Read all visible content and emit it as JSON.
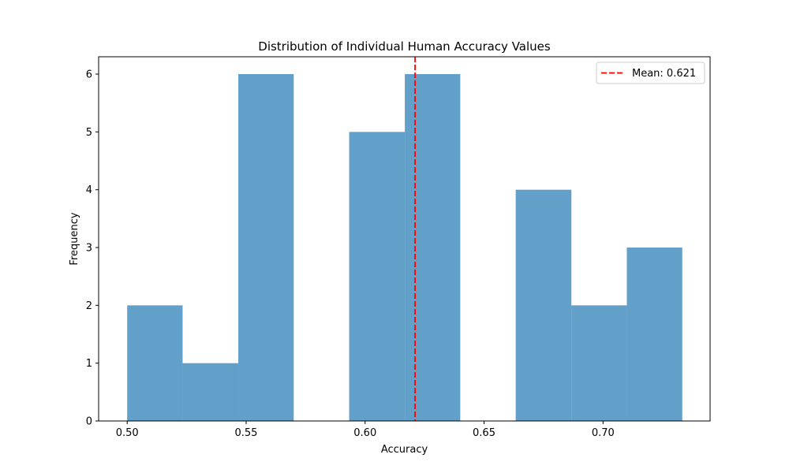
{
  "chart_data": {
    "type": "bar",
    "title": "Distribution of Individual Human Accuracy Values",
    "xlabel": "Accuracy",
    "ylabel": "Frequency",
    "bins": [
      {
        "x0": 0.5,
        "x1": 0.5233,
        "count": 2
      },
      {
        "x0": 0.5233,
        "x1": 0.5467,
        "count": 1
      },
      {
        "x0": 0.5467,
        "x1": 0.57,
        "count": 6
      },
      {
        "x0": 0.57,
        "x1": 0.5933,
        "count": 0
      },
      {
        "x0": 0.5933,
        "x1": 0.6167,
        "count": 5
      },
      {
        "x0": 0.6167,
        "x1": 0.64,
        "count": 6
      },
      {
        "x0": 0.64,
        "x1": 0.6633,
        "count": 0
      },
      {
        "x0": 0.6633,
        "x1": 0.6867,
        "count": 4
      },
      {
        "x0": 0.6867,
        "x1": 0.71,
        "count": 2
      },
      {
        "x0": 0.71,
        "x1": 0.7333,
        "count": 3
      }
    ],
    "xlim": [
      0.488,
      0.745
    ],
    "ylim": [
      0,
      6.3
    ],
    "xticks": [
      0.5,
      0.55,
      0.6,
      0.65,
      0.7
    ],
    "xtick_labels": [
      "0.50",
      "0.55",
      "0.60",
      "0.65",
      "0.70"
    ],
    "yticks": [
      0,
      1,
      2,
      3,
      4,
      5,
      6
    ],
    "ytick_labels": [
      "0",
      "1",
      "2",
      "3",
      "4",
      "5",
      "6"
    ],
    "mean_line": {
      "value": 0.621,
      "label": "Mean: 0.621",
      "color": "#ff0000",
      "style": "dashed"
    },
    "bar_color": "#1f77b4",
    "bar_opacity": 0.7,
    "legend": {
      "position": "top-right"
    },
    "grid": false
  }
}
